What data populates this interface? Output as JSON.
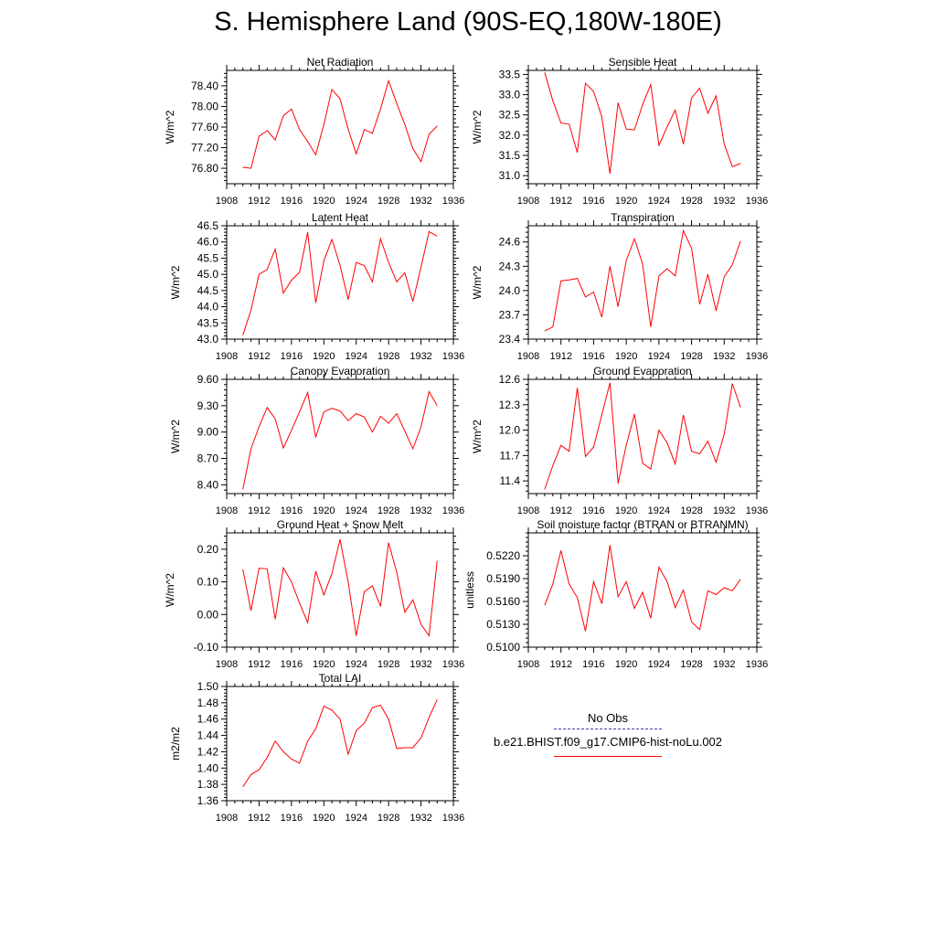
{
  "figure": {
    "title": "S. Hemisphere Land (90S-EQ,180W-180E)"
  },
  "legend": {
    "entries": [
      {
        "label": "No Obs",
        "color": "#3a3fa8",
        "style": "dashed"
      },
      {
        "label": "b.e21.BHIST.f09_g17.CMIP6-hist-noLu.002",
        "color": "#ff0000",
        "style": "solid"
      }
    ]
  },
  "chart_data": [
    {
      "type": "line",
      "title": "Net Radiation",
      "xlabel": "",
      "ylabel": "W/m^2",
      "xlim": [
        1908,
        1936
      ],
      "ylim": [
        76.5,
        78.7
      ],
      "xticks": [
        "1908",
        "1912",
        "1916",
        "1920",
        "1924",
        "1928",
        "1932",
        "1936"
      ],
      "yticks": [
        "76.80",
        "77.20",
        "77.60",
        "78.00",
        "78.40"
      ],
      "x": [
        1910,
        1911,
        1912,
        1913,
        1914,
        1915,
        1916,
        1917,
        1918,
        1919,
        1920,
        1921,
        1922,
        1923,
        1924,
        1925,
        1926,
        1927,
        1928,
        1929,
        1930,
        1931,
        1932,
        1933,
        1934
      ],
      "series": [
        {
          "color": "#ff0000",
          "values": [
            76.82,
            76.8,
            77.42,
            77.53,
            77.35,
            77.82,
            77.95,
            77.55,
            77.32,
            77.06,
            77.65,
            78.33,
            78.15,
            77.56,
            77.08,
            77.55,
            77.48,
            77.95,
            78.5,
            78.06,
            77.65,
            77.18,
            76.93,
            77.46,
            77.62
          ]
        }
      ]
    },
    {
      "type": "line",
      "title": "Sensible Heat",
      "xlabel": "",
      "ylabel": "W/m^2",
      "xlim": [
        1908,
        1936
      ],
      "ylim": [
        30.8,
        33.6
      ],
      "xticks": [
        "1908",
        "1912",
        "1916",
        "1920",
        "1924",
        "1928",
        "1932",
        "1936"
      ],
      "yticks": [
        "31.0",
        "31.5",
        "32.0",
        "32.5",
        "33.0",
        "33.5"
      ],
      "x": [
        1910,
        1911,
        1912,
        1913,
        1914,
        1915,
        1916,
        1917,
        1918,
        1919,
        1920,
        1921,
        1922,
        1923,
        1924,
        1925,
        1926,
        1927,
        1928,
        1929,
        1930,
        1931,
        1932,
        1933,
        1934
      ],
      "series": [
        {
          "color": "#ff0000",
          "values": [
            33.55,
            32.85,
            32.3,
            32.27,
            31.57,
            33.28,
            33.08,
            32.45,
            31.05,
            32.8,
            32.15,
            32.13,
            32.75,
            33.25,
            31.75,
            32.2,
            32.62,
            31.78,
            32.92,
            33.16,
            32.54,
            32.97,
            31.78,
            31.22,
            31.3
          ]
        }
      ]
    },
    {
      "type": "line",
      "title": "Latent Heat",
      "xlabel": "",
      "ylabel": "W/m^2",
      "xlim": [
        1908,
        1936
      ],
      "ylim": [
        43.0,
        46.5
      ],
      "xticks": [
        "1908",
        "1912",
        "1916",
        "1920",
        "1924",
        "1928",
        "1932",
        "1936"
      ],
      "yticks": [
        "43.0",
        "43.5",
        "44.0",
        "44.5",
        "45.0",
        "45.5",
        "46.0",
        "46.5"
      ],
      "x": [
        1910,
        1911,
        1912,
        1913,
        1914,
        1915,
        1916,
        1917,
        1918,
        1919,
        1920,
        1921,
        1922,
        1923,
        1924,
        1925,
        1926,
        1927,
        1928,
        1929,
        1930,
        1931,
        1932,
        1933,
        1934
      ],
      "series": [
        {
          "color": "#ff0000",
          "values": [
            43.12,
            43.9,
            45.0,
            45.15,
            45.78,
            44.42,
            44.82,
            45.06,
            46.3,
            44.12,
            45.42,
            46.08,
            45.28,
            44.22,
            45.37,
            45.27,
            44.77,
            46.1,
            45.37,
            44.77,
            45.05,
            44.16,
            45.22,
            46.32,
            46.18
          ]
        }
      ]
    },
    {
      "type": "line",
      "title": "Transpiration",
      "xlabel": "",
      "ylabel": "W/m^2",
      "xlim": [
        1908,
        1936
      ],
      "ylim": [
        23.4,
        24.8
      ],
      "xticks": [
        "1908",
        "1912",
        "1916",
        "1920",
        "1924",
        "1928",
        "1932",
        "1936"
      ],
      "yticks": [
        "23.4",
        "23.7",
        "24.0",
        "24.3",
        "24.6"
      ],
      "x": [
        1910,
        1911,
        1912,
        1913,
        1914,
        1915,
        1916,
        1917,
        1918,
        1919,
        1920,
        1921,
        1922,
        1923,
        1924,
        1925,
        1926,
        1927,
        1928,
        1929,
        1930,
        1931,
        1932,
        1933,
        1934
      ],
      "series": [
        {
          "color": "#ff0000",
          "values": [
            23.5,
            23.55,
            24.12,
            24.13,
            24.15,
            23.92,
            23.98,
            23.67,
            24.3,
            23.8,
            24.37,
            24.64,
            24.33,
            23.55,
            24.18,
            24.27,
            24.18,
            24.74,
            24.52,
            23.83,
            24.2,
            23.75,
            24.17,
            24.32,
            24.61
          ]
        }
      ]
    },
    {
      "type": "line",
      "title": "Canopy Evaporation",
      "xlabel": "",
      "ylabel": "W/m^2",
      "xlim": [
        1908,
        1936
      ],
      "ylim": [
        8.3,
        9.6
      ],
      "xticks": [
        "1908",
        "1912",
        "1916",
        "1920",
        "1924",
        "1928",
        "1932",
        "1936"
      ],
      "yticks": [
        "8.40",
        "8.70",
        "9.00",
        "9.30",
        "9.60"
      ],
      "x": [
        1910,
        1911,
        1912,
        1913,
        1914,
        1915,
        1916,
        1917,
        1918,
        1919,
        1920,
        1921,
        1922,
        1923,
        1924,
        1925,
        1926,
        1927,
        1928,
        1929,
        1930,
        1931,
        1932,
        1933,
        1934
      ],
      "series": [
        {
          "color": "#ff0000",
          "values": [
            8.35,
            8.81,
            9.06,
            9.28,
            9.15,
            8.82,
            9.02,
            9.23,
            9.45,
            8.94,
            9.23,
            9.27,
            9.24,
            9.13,
            9.21,
            9.17,
            9.0,
            9.18,
            9.1,
            9.21,
            9.01,
            8.81,
            9.06,
            9.46,
            9.3
          ]
        }
      ]
    },
    {
      "type": "line",
      "title": "Ground Evaporation",
      "xlabel": "",
      "ylabel": "W/m^2",
      "xlim": [
        1908,
        1936
      ],
      "ylim": [
        11.25,
        12.6
      ],
      "xticks": [
        "1908",
        "1912",
        "1916",
        "1920",
        "1924",
        "1928",
        "1932",
        "1936"
      ],
      "yticks": [
        "11.4",
        "11.7",
        "12.0",
        "12.3",
        "12.6"
      ],
      "x": [
        1910,
        1911,
        1912,
        1913,
        1914,
        1915,
        1916,
        1917,
        1918,
        1919,
        1920,
        1921,
        1922,
        1923,
        1924,
        1925,
        1926,
        1927,
        1928,
        1929,
        1930,
        1931,
        1932,
        1933,
        1934
      ],
      "series": [
        {
          "color": "#ff0000",
          "values": [
            11.3,
            11.58,
            11.82,
            11.75,
            12.5,
            11.69,
            11.8,
            12.18,
            12.56,
            11.37,
            11.82,
            12.19,
            11.61,
            11.54,
            12.0,
            11.85,
            11.6,
            12.18,
            11.75,
            11.72,
            11.87,
            11.62,
            11.95,
            12.55,
            12.27
          ]
        }
      ]
    },
    {
      "type": "line",
      "title": "Ground Heat + Snow Melt",
      "xlabel": "",
      "ylabel": "W/m^2",
      "xlim": [
        1908,
        1936
      ],
      "ylim": [
        -0.1,
        0.25
      ],
      "xticks": [
        "1908",
        "1912",
        "1916",
        "1920",
        "1924",
        "1928",
        "1932",
        "1936"
      ],
      "yticks": [
        "-0.10",
        "0.00",
        "0.10",
        "0.20"
      ],
      "x": [
        1910,
        1911,
        1912,
        1913,
        1914,
        1915,
        1916,
        1917,
        1918,
        1919,
        1920,
        1921,
        1922,
        1923,
        1924,
        1925,
        1926,
        1927,
        1928,
        1929,
        1930,
        1931,
        1932,
        1933,
        1934
      ],
      "series": [
        {
          "color": "#ff0000",
          "values": [
            0.138,
            0.012,
            0.142,
            0.14,
            -0.015,
            0.143,
            0.1,
            0.035,
            -0.025,
            0.133,
            0.06,
            0.125,
            0.23,
            0.1,
            -0.065,
            0.07,
            0.088,
            0.025,
            0.22,
            0.13,
            0.007,
            0.045,
            -0.03,
            -0.065,
            0.165
          ]
        }
      ]
    },
    {
      "type": "line",
      "title": "Soil moisture factor (BTRAN or BTRANMN)",
      "xlabel": "",
      "ylabel": "unitless",
      "xlim": [
        1908,
        1936
      ],
      "ylim": [
        0.51,
        0.525
      ],
      "xticks": [
        "1908",
        "1912",
        "1916",
        "1920",
        "1924",
        "1928",
        "1932",
        "1936"
      ],
      "yticks": [
        "0.5100",
        "0.5130",
        "0.5160",
        "0.5190",
        "0.5220"
      ],
      "x": [
        1910,
        1911,
        1912,
        1913,
        1914,
        1915,
        1916,
        1917,
        1918,
        1919,
        1920,
        1921,
        1922,
        1923,
        1924,
        1925,
        1926,
        1927,
        1928,
        1929,
        1930,
        1931,
        1932,
        1933,
        1934
      ],
      "series": [
        {
          "color": "#ff0000",
          "values": [
            0.5155,
            0.5183,
            0.5227,
            0.5183,
            0.5165,
            0.5121,
            0.5186,
            0.5157,
            0.5234,
            0.5166,
            0.5186,
            0.5151,
            0.5172,
            0.5138,
            0.5205,
            0.5186,
            0.5152,
            0.5175,
            0.5133,
            0.5123,
            0.5174,
            0.5169,
            0.5178,
            0.5174,
            0.5189
          ]
        }
      ]
    },
    {
      "type": "line",
      "title": "Total LAI",
      "xlabel": "",
      "ylabel": "m2/m2",
      "xlim": [
        1908,
        1936
      ],
      "ylim": [
        1.36,
        1.5
      ],
      "xticks": [
        "1908",
        "1912",
        "1916",
        "1920",
        "1924",
        "1928",
        "1932",
        "1936"
      ],
      "yticks": [
        "1.36",
        "1.38",
        "1.40",
        "1.42",
        "1.44",
        "1.46",
        "1.48",
        "1.50"
      ],
      "x": [
        1910,
        1911,
        1912,
        1913,
        1914,
        1915,
        1916,
        1917,
        1918,
        1919,
        1920,
        1921,
        1922,
        1923,
        1924,
        1925,
        1926,
        1927,
        1928,
        1929,
        1930,
        1931,
        1932,
        1933,
        1934
      ],
      "series": [
        {
          "color": "#ff0000",
          "values": [
            1.377,
            1.392,
            1.398,
            1.413,
            1.433,
            1.42,
            1.411,
            1.406,
            1.433,
            1.448,
            1.476,
            1.471,
            1.46,
            1.417,
            1.446,
            1.455,
            1.474,
            1.477,
            1.46,
            1.424,
            1.425,
            1.425,
            1.437,
            1.462,
            1.484
          ]
        }
      ]
    }
  ]
}
